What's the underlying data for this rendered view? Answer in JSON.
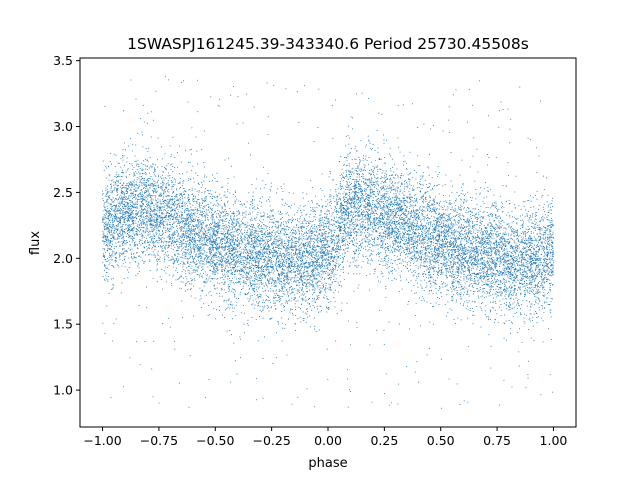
{
  "chart_data": {
    "type": "scatter",
    "title": "1SWASPJ161245.39-343340.6 Period 25730.45508s",
    "xlabel": "phase",
    "ylabel": "flux",
    "xlim": [
      -1.1,
      1.1
    ],
    "ylim": [
      0.72,
      3.52
    ],
    "x_ticks": [
      -1.0,
      -0.75,
      -0.5,
      -0.25,
      0.0,
      0.25,
      0.5,
      0.75,
      1.0
    ],
    "x_tick_labels": [
      "−1.00",
      "−0.75",
      "−0.50",
      "−0.25",
      "0.00",
      "0.25",
      "0.50",
      "0.75",
      "1.00"
    ],
    "y_ticks": [
      1.0,
      1.5,
      2.0,
      2.5,
      3.0,
      3.5
    ],
    "y_tick_labels": [
      "1.0",
      "1.5",
      "2.0",
      "2.5",
      "3.0",
      "3.5"
    ],
    "grid": false,
    "legend": "none",
    "marker_color": "#1f77b4",
    "series": [
      {
        "mean_curve": {
          "x": [
            -1.0,
            -0.9,
            -0.8,
            -0.7,
            -0.6,
            -0.5,
            -0.4,
            -0.3,
            -0.2,
            -0.1,
            0.0,
            0.1,
            0.2,
            0.3,
            0.4,
            0.5,
            0.6,
            0.7,
            0.8,
            0.9,
            1.0
          ],
          "y": [
            2.2,
            2.35,
            2.37,
            2.3,
            2.2,
            2.12,
            2.05,
            2.02,
            2.0,
            1.98,
            2.05,
            2.38,
            2.36,
            2.3,
            2.2,
            2.12,
            2.05,
            2.02,
            2.0,
            1.98,
            2.05
          ]
        },
        "scatter_sigma": 0.2,
        "outlier_fraction": 0.03,
        "outlier_range": [
          0.85,
          3.4
        ]
      }
    ]
  }
}
